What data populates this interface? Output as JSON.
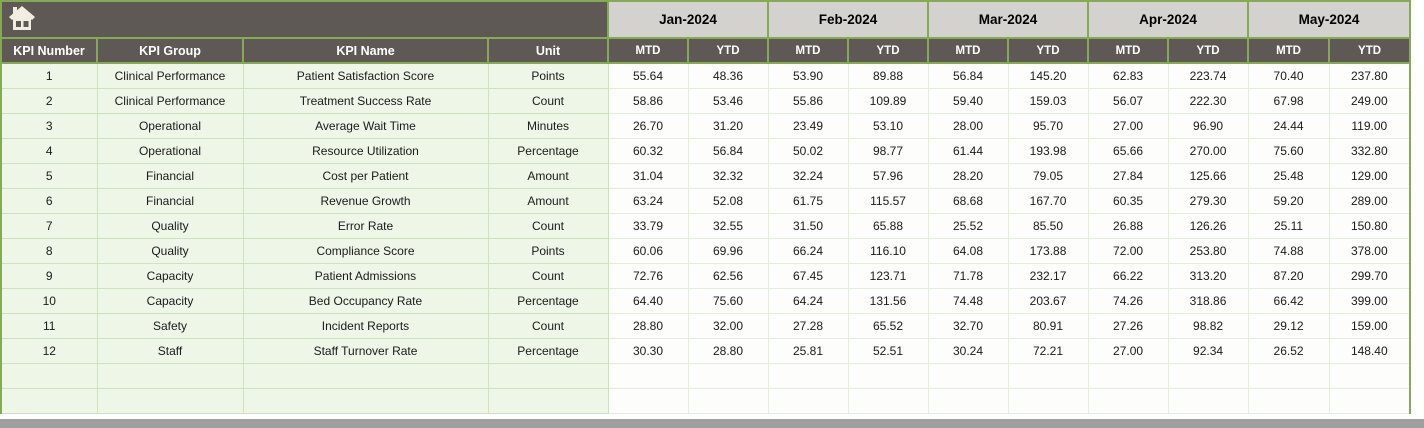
{
  "table": {
    "columns": [
      "KPI Number",
      "KPI Group",
      "KPI Name",
      "Unit"
    ],
    "months": [
      "Jan-2024",
      "Feb-2024",
      "Mar-2024",
      "Apr-2024",
      "May-2024"
    ],
    "sub_columns": [
      "MTD",
      "YTD"
    ],
    "rows": [
      {
        "number": "1",
        "group": "Clinical Performance",
        "name": "Patient Satisfaction Score",
        "unit": "Points",
        "values": [
          "55.64",
          "48.36",
          "53.90",
          "89.88",
          "56.84",
          "145.20",
          "62.83",
          "223.74",
          "70.40",
          "237.80"
        ]
      },
      {
        "number": "2",
        "group": "Clinical Performance",
        "name": "Treatment Success Rate",
        "unit": "Count",
        "values": [
          "58.86",
          "53.46",
          "55.86",
          "109.89",
          "59.40",
          "159.03",
          "56.07",
          "222.30",
          "67.98",
          "249.00"
        ]
      },
      {
        "number": "3",
        "group": "Operational",
        "name": "Average Wait Time",
        "unit": "Minutes",
        "values": [
          "26.70",
          "31.20",
          "23.49",
          "53.10",
          "28.00",
          "95.70",
          "27.00",
          "96.90",
          "24.44",
          "119.00"
        ]
      },
      {
        "number": "4",
        "group": "Operational",
        "name": "Resource Utilization",
        "unit": "Percentage",
        "values": [
          "60.32",
          "56.84",
          "50.02",
          "98.77",
          "61.44",
          "193.98",
          "65.66",
          "270.00",
          "75.60",
          "332.80"
        ]
      },
      {
        "number": "5",
        "group": "Financial",
        "name": "Cost per Patient",
        "unit": "Amount",
        "values": [
          "31.04",
          "32.32",
          "32.24",
          "57.96",
          "28.20",
          "79.05",
          "27.84",
          "125.66",
          "25.48",
          "129.00"
        ]
      },
      {
        "number": "6",
        "group": "Financial",
        "name": "Revenue Growth",
        "unit": "Amount",
        "values": [
          "63.24",
          "52.08",
          "61.75",
          "115.57",
          "68.68",
          "167.70",
          "60.35",
          "279.30",
          "59.20",
          "289.00"
        ]
      },
      {
        "number": "7",
        "group": "Quality",
        "name": "Error Rate",
        "unit": "Count",
        "values": [
          "33.79",
          "32.55",
          "31.50",
          "65.88",
          "25.52",
          "85.50",
          "26.88",
          "126.26",
          "25.11",
          "150.80"
        ]
      },
      {
        "number": "8",
        "group": "Quality",
        "name": "Compliance Score",
        "unit": "Points",
        "values": [
          "60.06",
          "69.96",
          "66.24",
          "116.10",
          "64.08",
          "173.88",
          "72.00",
          "253.80",
          "74.88",
          "378.00"
        ]
      },
      {
        "number": "9",
        "group": "Capacity",
        "name": "Patient Admissions",
        "unit": "Count",
        "values": [
          "72.76",
          "62.56",
          "67.45",
          "123.71",
          "71.78",
          "232.17",
          "66.22",
          "313.20",
          "87.20",
          "299.70"
        ]
      },
      {
        "number": "10",
        "group": "Capacity",
        "name": "Bed Occupancy Rate",
        "unit": "Percentage",
        "values": [
          "64.40",
          "75.60",
          "64.24",
          "131.56",
          "74.48",
          "203.67",
          "74.26",
          "318.86",
          "66.42",
          "399.00"
        ]
      },
      {
        "number": "11",
        "group": "Safety",
        "name": "Incident Reports",
        "unit": "Count",
        "values": [
          "28.80",
          "32.00",
          "27.28",
          "65.52",
          "32.70",
          "80.91",
          "27.26",
          "98.82",
          "29.12",
          "159.00"
        ]
      },
      {
        "number": "12",
        "group": "Staff",
        "name": "Staff Turnover Rate",
        "unit": "Percentage",
        "values": [
          "30.30",
          "28.80",
          "25.81",
          "52.51",
          "30.24",
          "72.21",
          "27.00",
          "92.34",
          "26.52",
          "148.40"
        ]
      }
    ],
    "empty_row_count": 2
  },
  "icons": {
    "home": "home-icon"
  },
  "colors": {
    "header_dark": "#5e5954",
    "band_gray": "#d4d2cf",
    "border_green": "#86a956",
    "label_bg": "#edf6e7",
    "label_border": "#cde2bd",
    "value_bg": "#fdfefb",
    "value_border": "#e3efd9",
    "scrollbar_gray": "#9f9f9f",
    "icon_cream": "#f2ede1",
    "text_dark": "#1a1a1a"
  }
}
